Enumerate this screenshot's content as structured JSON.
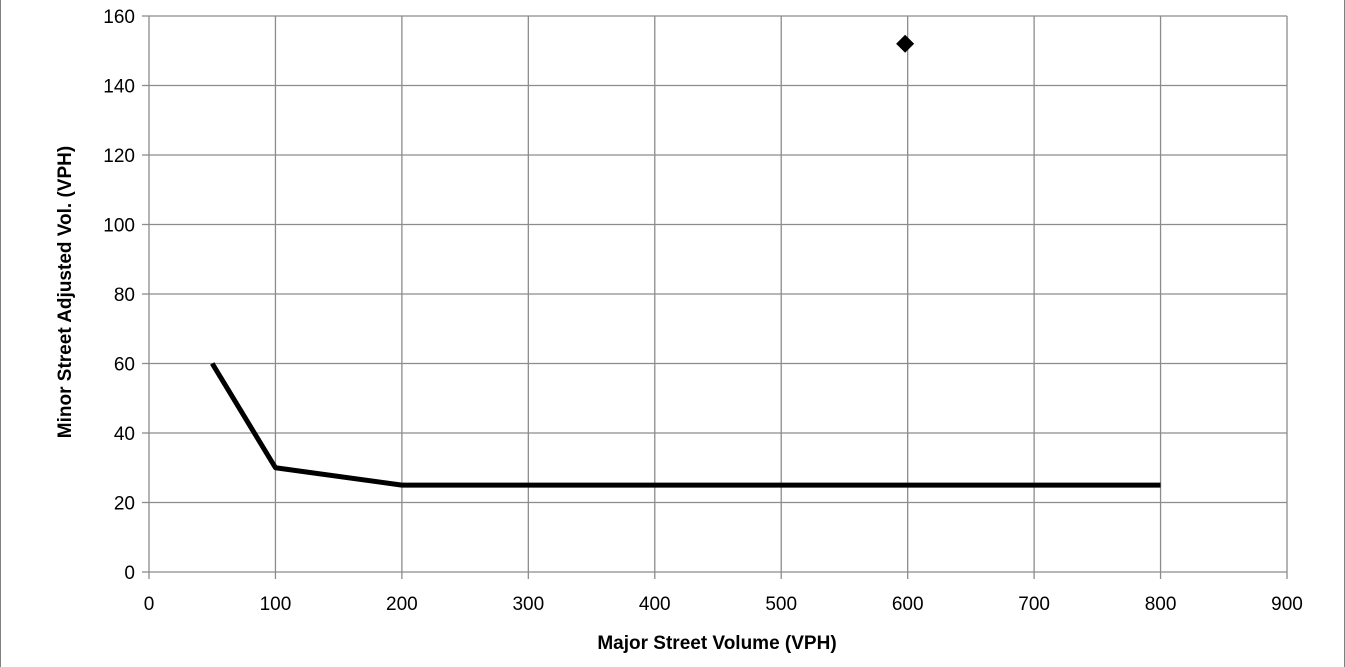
{
  "chart_data": {
    "type": "line",
    "title": "",
    "xlabel": "Major Street Volume (VPH)",
    "ylabel": "Minor Street Adjusted Vol. (VPH)",
    "xlim": [
      0,
      900
    ],
    "ylim": [
      0,
      160
    ],
    "x_ticks": [
      0,
      100,
      200,
      300,
      400,
      500,
      600,
      700,
      800,
      900
    ],
    "y_ticks": [
      0,
      20,
      40,
      60,
      80,
      100,
      120,
      140,
      160
    ],
    "grid": true,
    "legend": "none",
    "series": [
      {
        "type": "line",
        "color": "#000000",
        "points": [
          [
            50,
            60
          ],
          [
            100,
            30
          ],
          [
            200,
            25
          ],
          [
            800,
            25
          ]
        ]
      },
      {
        "type": "scatter",
        "marker": "diamond",
        "color": "#000000",
        "points": [
          [
            598,
            152
          ]
        ]
      }
    ]
  }
}
